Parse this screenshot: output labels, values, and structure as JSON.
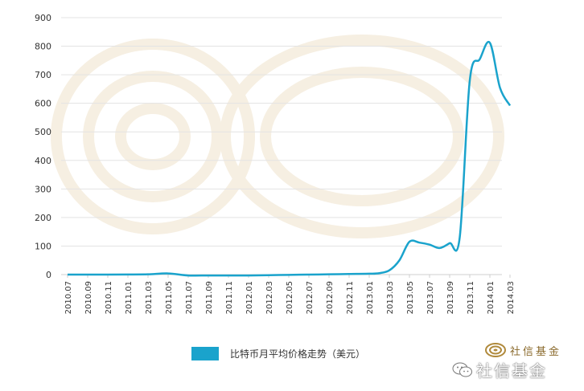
{
  "chart_data": {
    "type": "line",
    "title": "",
    "xlabel": "",
    "ylabel": "",
    "ylim": [
      0,
      900
    ],
    "yticks": [
      0,
      100,
      200,
      300,
      400,
      500,
      600,
      700,
      800,
      900
    ],
    "grid": "horizontal",
    "legend_position": "bottom",
    "categories": [
      "2010.07",
      "2010.09",
      "2010.11",
      "2011.01",
      "2011.03",
      "2011.05",
      "2011.07",
      "2011.09",
      "2011.11",
      "2012.01",
      "2012.03",
      "2012.05",
      "2012.07",
      "2012.09",
      "2012.11",
      "2013.01",
      "2013.03",
      "2013.05",
      "2013.07",
      "2013.09",
      "2013.11",
      "2014.01",
      "2014.03"
    ],
    "series": [
      {
        "name": "比特币月平均价格走势（美元）",
        "color": "#1aa3cc",
        "x": [
          0,
          1,
          2,
          3,
          4,
          5,
          6,
          7,
          8,
          9,
          10,
          11,
          12,
          13,
          14,
          15,
          15.5,
          16,
          16.5,
          17,
          17.5,
          18,
          18.5,
          19,
          19.5,
          20,
          20.5,
          21,
          21.5,
          22
        ],
        "y": [
          0.1,
          0.1,
          0.1,
          0.3,
          0.9,
          4,
          -3,
          -3,
          -3,
          -3,
          -2,
          -1,
          0,
          1,
          2,
          3,
          5,
          15,
          50,
          115,
          112,
          105,
          93,
          110,
          130,
          680,
          755,
          812,
          655,
          592
        ]
      }
    ]
  },
  "brand": {
    "logo_text": "社信基金",
    "watermark_text": "社信基金"
  }
}
